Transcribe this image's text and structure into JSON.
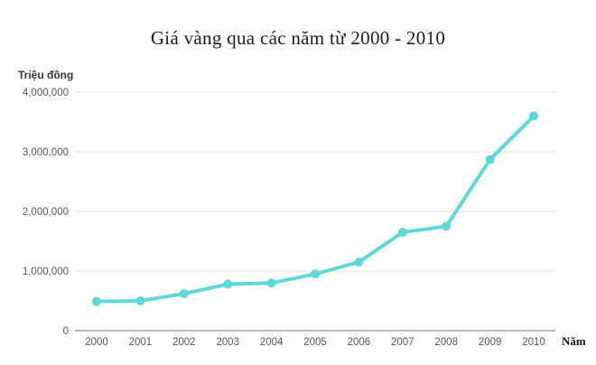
{
  "header": {
    "title": "Giá vàng qua các năm từ 2000 - 2010"
  },
  "chart_data": {
    "type": "line",
    "title": "Giá vàng qua các năm từ 2000 - 2010",
    "xlabel": "Năm",
    "ylabel": "Triệu đồng",
    "categories": [
      "2000",
      "2001",
      "2002",
      "2003",
      "2004",
      "2005",
      "2006",
      "2007",
      "2008",
      "2009",
      "2010"
    ],
    "values": [
      490000,
      500000,
      620000,
      780000,
      800000,
      950000,
      1150000,
      1650000,
      1750000,
      2870000,
      3600000
    ],
    "ylim": [
      0,
      4000000
    ],
    "y_ticks": [
      0,
      1000000,
      2000000,
      3000000,
      4000000
    ],
    "grid": "horizontal",
    "legend": "none",
    "colors": {
      "line": "#5fd9d5",
      "grid": "#e3e3e3",
      "axis_line": "#a3a3a3",
      "tick_label": "#54585c",
      "title": "#1c1c1c"
    }
  }
}
